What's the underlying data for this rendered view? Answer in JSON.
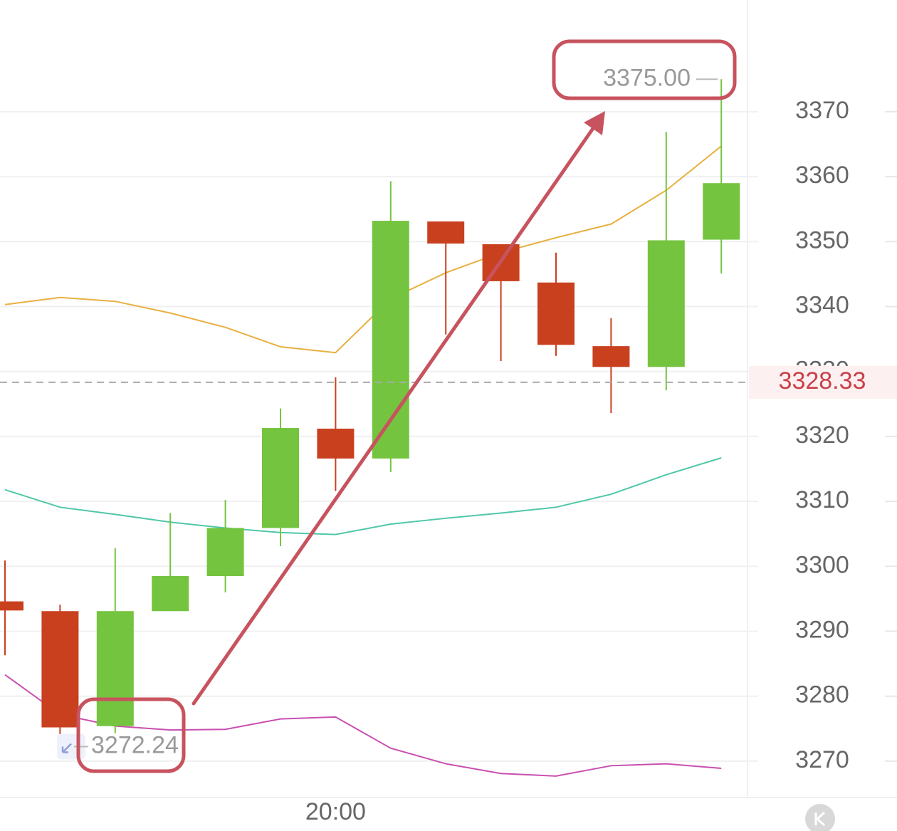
{
  "chart_data": {
    "type": "candlestick",
    "categories": [
      null,
      null,
      null,
      null,
      null,
      null,
      "20:00",
      null,
      null,
      null,
      null,
      null,
      null,
      null
    ],
    "open": [
      3294.6,
      3293.1,
      3275.4,
      3293.1,
      3298.5,
      3305.9,
      3321.2,
      3316.6,
      3353.1,
      3349.6,
      3343.7,
      3333.9,
      3330.7,
      3350.3
    ],
    "high": [
      3300.9,
      3294.1,
      3302.8,
      3308.2,
      3310.2,
      3324.3,
      3329.1,
      3359.3,
      3353.1,
      3349.6,
      3348.3,
      3338.2,
      3366.9,
      3375.0
    ],
    "low": [
      3286.3,
      3272.24,
      3274.3,
      3293.1,
      3296.0,
      3303.1,
      3311.6,
      3314.5,
      3335.7,
      3331.6,
      3332.4,
      3323.6,
      3327.1,
      3345.1
    ],
    "close": [
      3293.2,
      3275.2,
      3293.1,
      3298.5,
      3305.9,
      3321.3,
      3316.6,
      3353.2,
      3349.7,
      3343.9,
      3334.1,
      3330.7,
      3350.2,
      3359.0
    ],
    "up_color": "#74c43f",
    "down_color": "#c9401f",
    "lines": [
      {
        "color": "#e8b040",
        "values": [
          3340.3,
          3341.4,
          3340.8,
          3339.0,
          3336.8,
          3333.8,
          3332.9,
          3341.2,
          3345.2,
          3348.3,
          3350.6,
          3352.7,
          3357.9,
          3364.7
        ]
      },
      {
        "color": "#4fc7a8",
        "values": [
          3311.8,
          3309.1,
          3308.0,
          3306.8,
          3305.9,
          3305.2,
          3304.9,
          3306.5,
          3307.4,
          3308.2,
          3309.1,
          3311.1,
          3314.1,
          3316.7
        ]
      },
      {
        "color": "#c94fb0",
        "values": [
          3283.3,
          3277.2,
          3275.4,
          3274.8,
          3274.9,
          3276.5,
          3276.8,
          3272.0,
          3269.6,
          3268.1,
          3267.7,
          3269.3,
          3269.6,
          3268.9
        ]
      }
    ],
    "ylim": [
      3264.4,
      3387.2
    ],
    "yticks": [
      3270,
      3280,
      3290,
      3300,
      3310,
      3320,
      3330,
      3340,
      3350,
      3360,
      3370
    ],
    "grid": true,
    "current_price": 3328.33,
    "high_label": {
      "value": 3375,
      "label": "3375.00"
    },
    "low_label": 3272.24
  }
}
